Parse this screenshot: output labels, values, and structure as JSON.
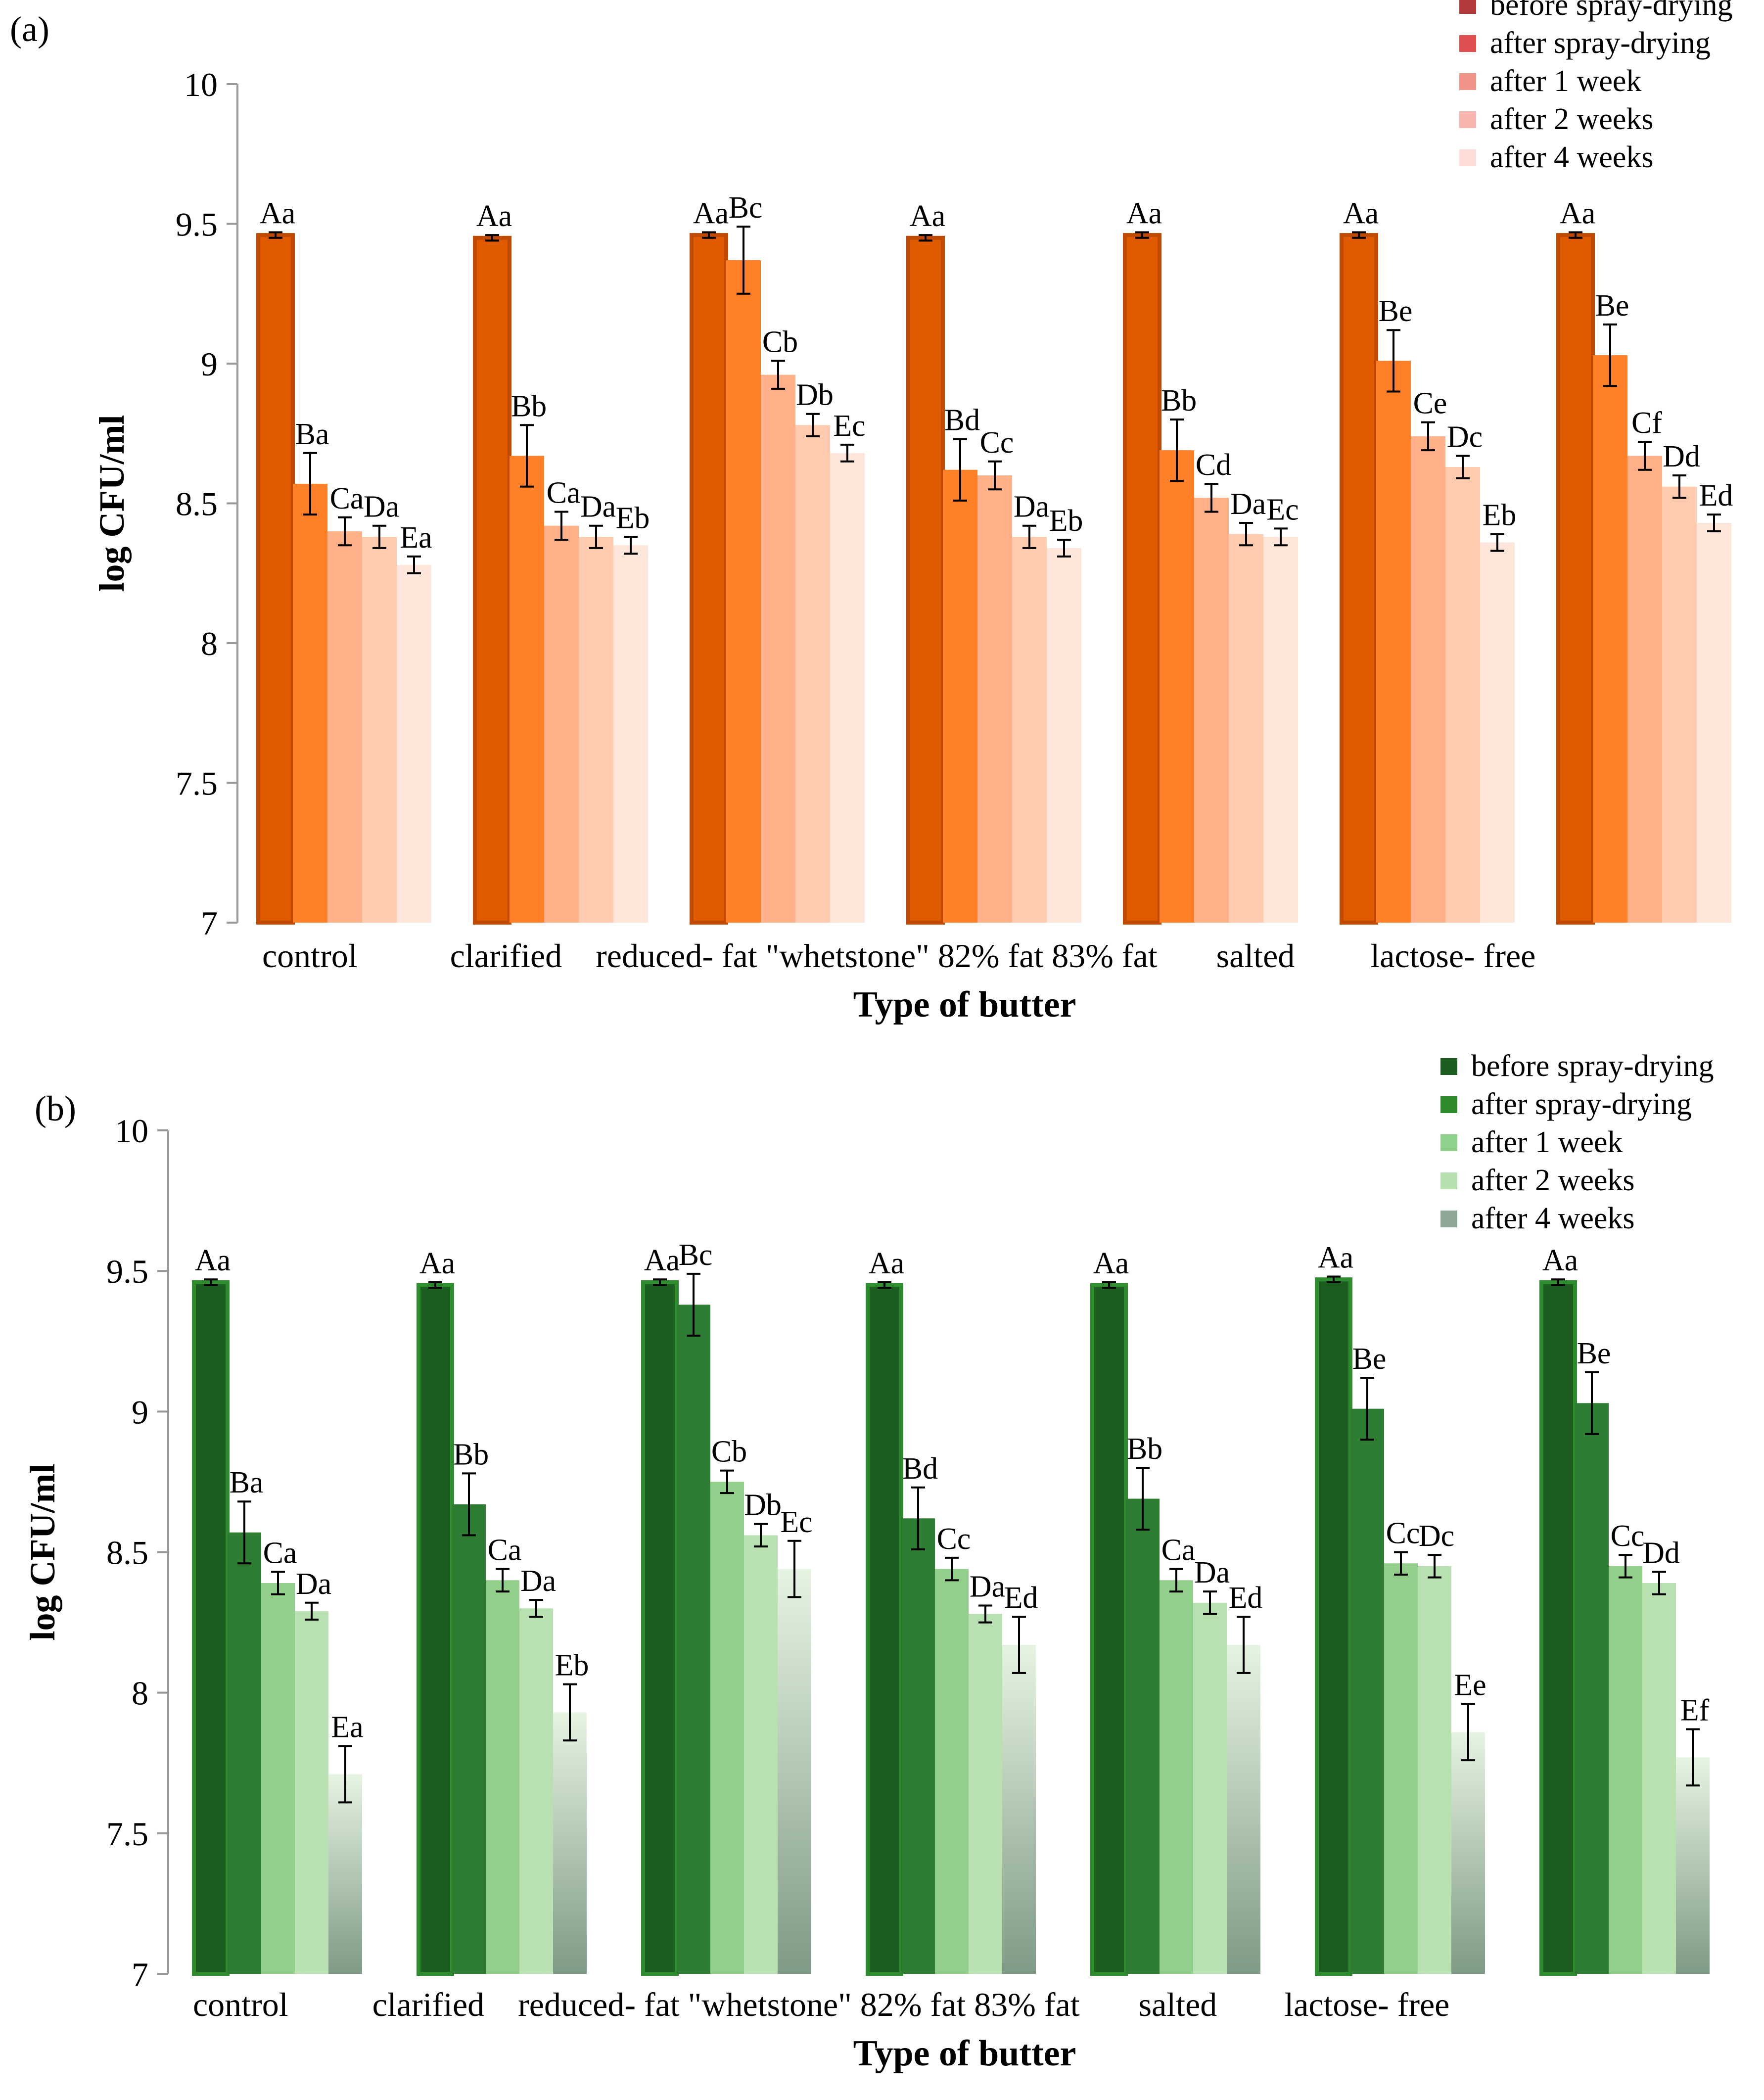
{
  "chart_data": [
    {
      "panel_label": "(a)",
      "type": "bar",
      "xlabel": "Type of butter",
      "ylabel": "log CFU/ml",
      "ylim": [
        7,
        10
      ],
      "yticks": [
        "7",
        "7.5",
        "8",
        "8.5",
        "9",
        "9.5",
        "10"
      ],
      "category_label_text": "control           clarified    reduced- fat \"whetstone\" 82% fat 83% fat       salted         lactose- free",
      "legend_position": "top-right",
      "colors": [
        "#E05A00",
        "#FF7F27",
        "#FFB088",
        "#FFCBAF",
        "#FFE6DA"
      ],
      "legend_colors": [
        "#B23A3A",
        "#E05050",
        "#F0948A",
        "#F5B5AE",
        "#FCDCD6"
      ],
      "series": [
        {
          "name": "before spray-drying",
          "values": [
            9.46,
            9.45,
            9.46,
            9.45,
            9.46,
            9.46,
            9.46
          ],
          "errors": [
            0.01,
            0.01,
            0.01,
            0.01,
            0.01,
            0.01,
            0.01
          ],
          "labels": [
            "Aa",
            "Aa",
            "Aa",
            "Aa",
            "Aa",
            "Aa",
            "Aa"
          ]
        },
        {
          "name": "after spray-drying",
          "values": [
            8.57,
            8.67,
            9.37,
            8.62,
            8.69,
            9.01,
            9.03
          ],
          "errors": [
            0.11,
            0.11,
            0.12,
            0.11,
            0.11,
            0.11,
            0.11
          ],
          "labels": [
            "Ba",
            "Bb",
            "Bc",
            "Bd",
            "Bb",
            "Be",
            "Be"
          ]
        },
        {
          "name": "after 1 week",
          "values": [
            8.4,
            8.42,
            8.96,
            8.6,
            8.52,
            8.74,
            8.67
          ],
          "errors": [
            0.05,
            0.05,
            0.05,
            0.05,
            0.05,
            0.05,
            0.05
          ],
          "labels": [
            "Ca",
            "Ca",
            "Cb",
            "Cc",
            "Cd",
            "Ce",
            "Cf"
          ]
        },
        {
          "name": "after 2 weeks",
          "values": [
            8.38,
            8.38,
            8.78,
            8.38,
            8.39,
            8.63,
            8.56
          ],
          "errors": [
            0.04,
            0.04,
            0.04,
            0.04,
            0.04,
            0.04,
            0.04
          ],
          "labels": [
            "Da",
            "Da",
            "Db",
            "Da",
            "Da",
            "Dc",
            "Dd"
          ]
        },
        {
          "name": "after 4 weeks",
          "values": [
            8.28,
            8.35,
            8.68,
            8.34,
            8.38,
            8.36,
            8.43
          ],
          "errors": [
            0.03,
            0.03,
            0.03,
            0.03,
            0.03,
            0.03,
            0.03
          ],
          "labels": [
            "Ea",
            "Eb",
            "Ec",
            "Eb",
            "Ec",
            "Eb",
            "Ed"
          ]
        }
      ]
    },
    {
      "panel_label": "(b)",
      "type": "bar",
      "xlabel": "Type of butter",
      "ylabel": "log CFU/ml",
      "ylim": [
        7,
        10
      ],
      "yticks": [
        "7",
        "7.5",
        "8",
        "8.5",
        "9",
        "9.5",
        "10"
      ],
      "category_label_text": "control          clarified    reduced- fat \"whetstone\" 82% fat 83% fat       salted        lactose- free",
      "legend_position": "top-right",
      "colors": [
        "#1B5E20",
        "#2E7D32",
        "#92CF8A",
        "#B8E0B0",
        "#D4ECD0"
      ],
      "legend_colors": [
        "#1B5E20",
        "#2E8B2E",
        "#8FD18A",
        "#B5E0AE",
        "#8FA896"
      ],
      "series": [
        {
          "name": "before spray-drying",
          "values": [
            9.46,
            9.45,
            9.46,
            9.45,
            9.45,
            9.47,
            9.46
          ],
          "errors": [
            0.01,
            0.01,
            0.01,
            0.01,
            0.01,
            0.01,
            0.01
          ],
          "labels": [
            "Aa",
            "Aa",
            "Aa",
            "Aa",
            "Aa",
            "Aa",
            "Aa"
          ]
        },
        {
          "name": "after spray-drying",
          "values": [
            8.57,
            8.67,
            9.38,
            8.62,
            8.69,
            9.01,
            9.03
          ],
          "errors": [
            0.11,
            0.11,
            0.11,
            0.11,
            0.11,
            0.11,
            0.11
          ],
          "labels": [
            "Ba",
            "Bb",
            "Bc",
            "Bd",
            "Bb",
            "Be",
            "Be"
          ]
        },
        {
          "name": "after 1 week",
          "values": [
            8.39,
            8.4,
            8.75,
            8.44,
            8.4,
            8.46,
            8.45
          ],
          "errors": [
            0.04,
            0.04,
            0.04,
            0.04,
            0.04,
            0.04,
            0.04
          ],
          "labels": [
            "Ca",
            "Ca",
            "Cb",
            "Cc",
            "Ca",
            "Cc",
            "Cc"
          ]
        },
        {
          "name": "after 2 weeks",
          "values": [
            8.29,
            8.3,
            8.56,
            8.28,
            8.32,
            8.45,
            8.39
          ],
          "errors": [
            0.03,
            0.03,
            0.04,
            0.03,
            0.04,
            0.04,
            0.04
          ],
          "labels": [
            "Da",
            "Da",
            "Db",
            "Da",
            "Da",
            "Dc",
            "Dd"
          ]
        },
        {
          "name": "after 4 weeks",
          "values": [
            7.71,
            7.93,
            8.44,
            8.17,
            8.17,
            7.86,
            7.77
          ],
          "errors": [
            0.1,
            0.1,
            0.1,
            0.1,
            0.1,
            0.1,
            0.1
          ],
          "labels": [
            "Ea",
            "Eb",
            "Ec",
            "Ed",
            "Ed",
            "Ee",
            "Ef"
          ]
        }
      ]
    }
  ]
}
